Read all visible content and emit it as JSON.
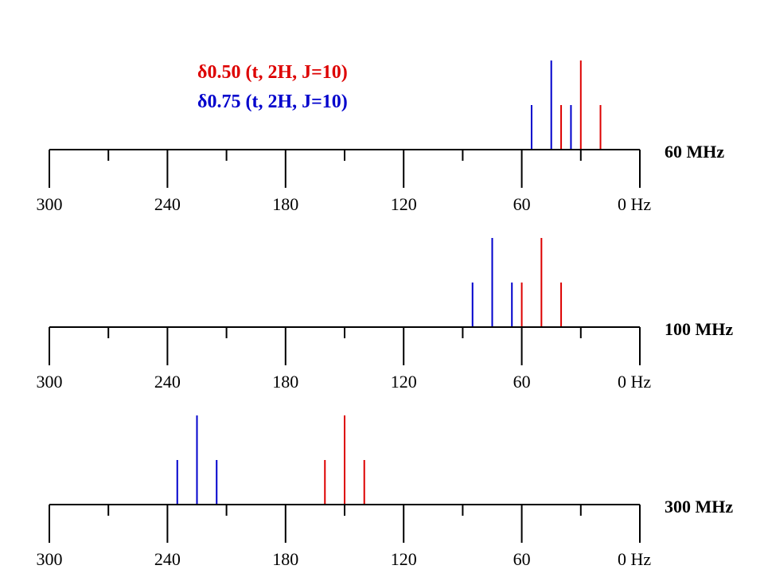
{
  "chart_data": [
    {
      "type": "stick-spectrum",
      "field_label": "60 MHz",
      "x_unit": "Hz",
      "xlim": [
        300,
        0
      ],
      "major_ticks": [
        300,
        240,
        180,
        120,
        60,
        0
      ],
      "minor_ticks": [
        270,
        210,
        150,
        90,
        30
      ],
      "tick_labels": [
        "300",
        "240",
        "180",
        "120",
        "60",
        "0 Hz"
      ],
      "series": [
        {
          "color": "#0000cc",
          "peaks": [
            {
              "x": 55,
              "height": 0.5
            },
            {
              "x": 45,
              "height": 1.0
            },
            {
              "x": 35,
              "height": 0.5
            }
          ]
        },
        {
          "color": "#dd0000",
          "peaks": [
            {
              "x": 40,
              "height": 0.5
            },
            {
              "x": 30,
              "height": 1.0
            },
            {
              "x": 20,
              "height": 0.5
            }
          ]
        }
      ]
    },
    {
      "type": "stick-spectrum",
      "field_label": "100 MHz",
      "x_unit": "Hz",
      "xlim": [
        300,
        0
      ],
      "major_ticks": [
        300,
        240,
        180,
        120,
        60,
        0
      ],
      "minor_ticks": [
        270,
        210,
        150,
        90,
        30
      ],
      "tick_labels": [
        "300",
        "240",
        "180",
        "120",
        "60",
        "0 Hz"
      ],
      "series": [
        {
          "color": "#0000cc",
          "peaks": [
            {
              "x": 85,
              "height": 0.5
            },
            {
              "x": 75,
              "height": 1.0
            },
            {
              "x": 65,
              "height": 0.5
            }
          ]
        },
        {
          "color": "#dd0000",
          "peaks": [
            {
              "x": 60,
              "height": 0.5
            },
            {
              "x": 50,
              "height": 1.0
            },
            {
              "x": 40,
              "height": 0.5
            }
          ]
        }
      ]
    },
    {
      "type": "stick-spectrum",
      "field_label": "300 MHz",
      "x_unit": "Hz",
      "xlim": [
        300,
        0
      ],
      "major_ticks": [
        300,
        240,
        180,
        120,
        60,
        0
      ],
      "minor_ticks": [
        270,
        210,
        150,
        90,
        30
      ],
      "tick_labels": [
        "300",
        "240",
        "180",
        "120",
        "60",
        "0 Hz"
      ],
      "series": [
        {
          "color": "#0000cc",
          "peaks": [
            {
              "x": 235,
              "height": 0.5
            },
            {
              "x": 225,
              "height": 1.0
            },
            {
              "x": 215,
              "height": 0.5
            }
          ]
        },
        {
          "color": "#dd0000",
          "peaks": [
            {
              "x": 160,
              "height": 0.5
            },
            {
              "x": 150,
              "height": 1.0
            },
            {
              "x": 140,
              "height": 0.5
            }
          ]
        }
      ]
    }
  ],
  "legend": [
    {
      "symbol": "δ",
      "text": "0.50 (t, 2H, J=10)",
      "color": "#dd0000"
    },
    {
      "symbol": "δ",
      "text": "0.75 (t, 2H, J=10)",
      "color": "#0000cc"
    }
  ]
}
